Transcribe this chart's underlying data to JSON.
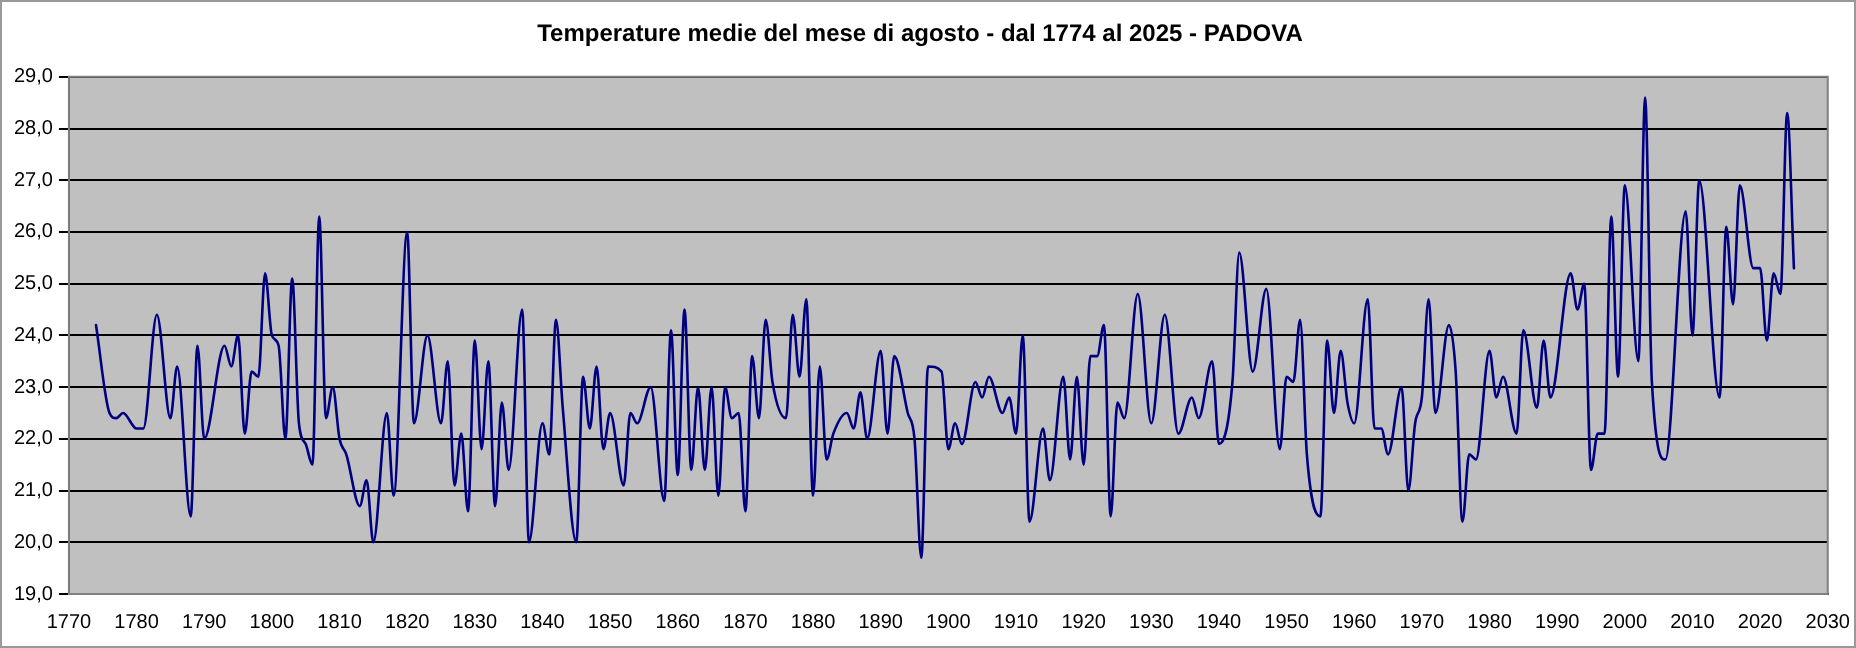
{
  "chart_data": {
    "type": "line",
    "title": "Temperature medie del mese di agosto - dal 1774 al 2025 - PADOVA",
    "xlim": [
      1770,
      2030
    ],
    "xticks": [
      1770,
      1780,
      1790,
      1800,
      1810,
      1820,
      1830,
      1840,
      1850,
      1860,
      1870,
      1880,
      1890,
      1900,
      1910,
      1920,
      1930,
      1940,
      1950,
      1960,
      1970,
      1980,
      1990,
      2000,
      2010,
      2020,
      2030
    ],
    "ylim": [
      19,
      29
    ],
    "yticks": [
      {
        "value": 19,
        "label": "19,0"
      },
      {
        "value": 20,
        "label": "20,0"
      },
      {
        "value": 21,
        "label": "21,0"
      },
      {
        "value": 22,
        "label": "22,0"
      },
      {
        "value": 23,
        "label": "23,0"
      },
      {
        "value": 24,
        "label": "24,0"
      },
      {
        "value": 25,
        "label": "25,0"
      },
      {
        "value": 26,
        "label": "26,0"
      },
      {
        "value": 27,
        "label": "27,0"
      },
      {
        "value": 28,
        "label": "28,0"
      },
      {
        "value": 29,
        "label": "29,0"
      }
    ],
    "grid": "y",
    "legend": false,
    "marker": "none",
    "line_style": "solid",
    "series": [
      {
        "color": "#000080",
        "x": [
          1774,
          1776,
          1777,
          1778,
          1780,
          1781,
          1783,
          1785,
          1786,
          1788,
          1789,
          1790,
          1793,
          1794,
          1795,
          1796,
          1797,
          1798,
          1799,
          1800,
          1801,
          1802,
          1803,
          1804,
          1805,
          1806,
          1807,
          1808,
          1809,
          1810,
          1811,
          1813,
          1814,
          1815,
          1817,
          1818,
          1820,
          1821,
          1823,
          1825,
          1826,
          1827,
          1828,
          1829,
          1830,
          1831,
          1832,
          1833,
          1834,
          1835,
          1837,
          1838,
          1840,
          1841,
          1842,
          1843,
          1845,
          1846,
          1847,
          1848,
          1849,
          1850,
          1852,
          1853,
          1854,
          1856,
          1858,
          1859,
          1860,
          1861,
          1862,
          1863,
          1864,
          1865,
          1866,
          1867,
          1868,
          1869,
          1870,
          1871,
          1872,
          1873,
          1874,
          1876,
          1877,
          1878,
          1879,
          1880,
          1881,
          1882,
          1883,
          1885,
          1886,
          1887,
          1888,
          1890,
          1891,
          1892,
          1894,
          1895,
          1896,
          1897,
          1899,
          1900,
          1901,
          1902,
          1904,
          1905,
          1906,
          1908,
          1909,
          1910,
          1911,
          1912,
          1914,
          1915,
          1917,
          1918,
          1919,
          1920,
          1921,
          1922,
          1923,
          1924,
          1925,
          1926,
          1928,
          1930,
          1932,
          1934,
          1936,
          1937,
          1939,
          1940,
          1942,
          1943,
          1945,
          1947,
          1949,
          1950,
          1951,
          1952,
          1953,
          1955,
          1956,
          1957,
          1958,
          1959,
          1960,
          1962,
          1963,
          1964,
          1965,
          1967,
          1968,
          1969,
          1970,
          1971,
          1972,
          1974,
          1975,
          1976,
          1977,
          1978,
          1980,
          1981,
          1982,
          1984,
          1985,
          1987,
          1988,
          1989,
          1992,
          1993,
          1994,
          1995,
          1996,
          1997,
          1998,
          1999,
          2000,
          2002,
          2003,
          2004,
          2006,
          2009,
          2010,
          2011,
          2014,
          2015,
          2016,
          2017,
          2019,
          2020,
          2021,
          2022,
          2023,
          2024,
          2025
        ],
        "values": [
          24.2,
          22.5,
          22.4,
          22.5,
          22.2,
          22.2,
          24.4,
          22.4,
          23.4,
          20.5,
          23.8,
          22.0,
          23.8,
          23.4,
          24.0,
          22.1,
          23.3,
          23.2,
          25.2,
          24.0,
          23.8,
          22.0,
          25.1,
          22.3,
          21.9,
          21.5,
          26.3,
          22.4,
          23.0,
          22.0,
          21.7,
          20.7,
          21.2,
          20.0,
          22.5,
          20.9,
          26.0,
          22.3,
          24.0,
          22.3,
          23.5,
          21.1,
          22.1,
          20.6,
          23.9,
          21.8,
          23.5,
          20.7,
          22.7,
          21.4,
          24.5,
          20.0,
          22.3,
          21.7,
          24.3,
          22.6,
          20.0,
          23.2,
          22.2,
          23.4,
          21.8,
          22.5,
          21.1,
          22.5,
          22.3,
          23.0,
          20.8,
          24.1,
          21.3,
          24.5,
          21.4,
          23.0,
          21.4,
          23.0,
          20.9,
          23.0,
          22.4,
          22.5,
          20.6,
          23.6,
          22.4,
          24.3,
          23.1,
          22.4,
          24.4,
          23.2,
          24.7,
          20.9,
          23.4,
          21.6,
          22.1,
          22.5,
          22.2,
          22.9,
          22.0,
          23.7,
          22.1,
          23.6,
          22.5,
          22.0,
          19.7,
          23.4,
          23.3,
          21.8,
          22.3,
          21.9,
          23.1,
          22.8,
          23.2,
          22.5,
          22.8,
          22.1,
          24.0,
          20.4,
          22.2,
          21.2,
          23.2,
          21.6,
          23.2,
          21.5,
          23.6,
          23.6,
          24.2,
          20.5,
          22.7,
          22.4,
          24.8,
          22.3,
          24.4,
          22.1,
          22.8,
          22.4,
          23.5,
          21.9,
          23.1,
          25.6,
          23.3,
          24.9,
          21.8,
          23.2,
          23.1,
          24.3,
          21.7,
          20.5,
          23.9,
          22.5,
          23.7,
          22.7,
          22.3,
          24.7,
          22.2,
          22.2,
          21.7,
          23.0,
          21.0,
          22.3,
          22.8,
          24.7,
          22.5,
          24.2,
          23.3,
          20.4,
          21.7,
          21.6,
          23.7,
          22.8,
          23.2,
          22.1,
          24.1,
          22.6,
          23.9,
          22.8,
          25.2,
          24.5,
          25.0,
          21.4,
          22.1,
          22.1,
          26.3,
          23.2,
          26.9,
          23.5,
          28.6,
          23.1,
          21.6,
          26.4,
          24.0,
          27.0,
          22.8,
          26.1,
          24.6,
          26.9,
          25.3,
          25.3,
          23.9,
          25.2,
          24.8,
          28.3,
          25.3
        ]
      }
    ]
  }
}
